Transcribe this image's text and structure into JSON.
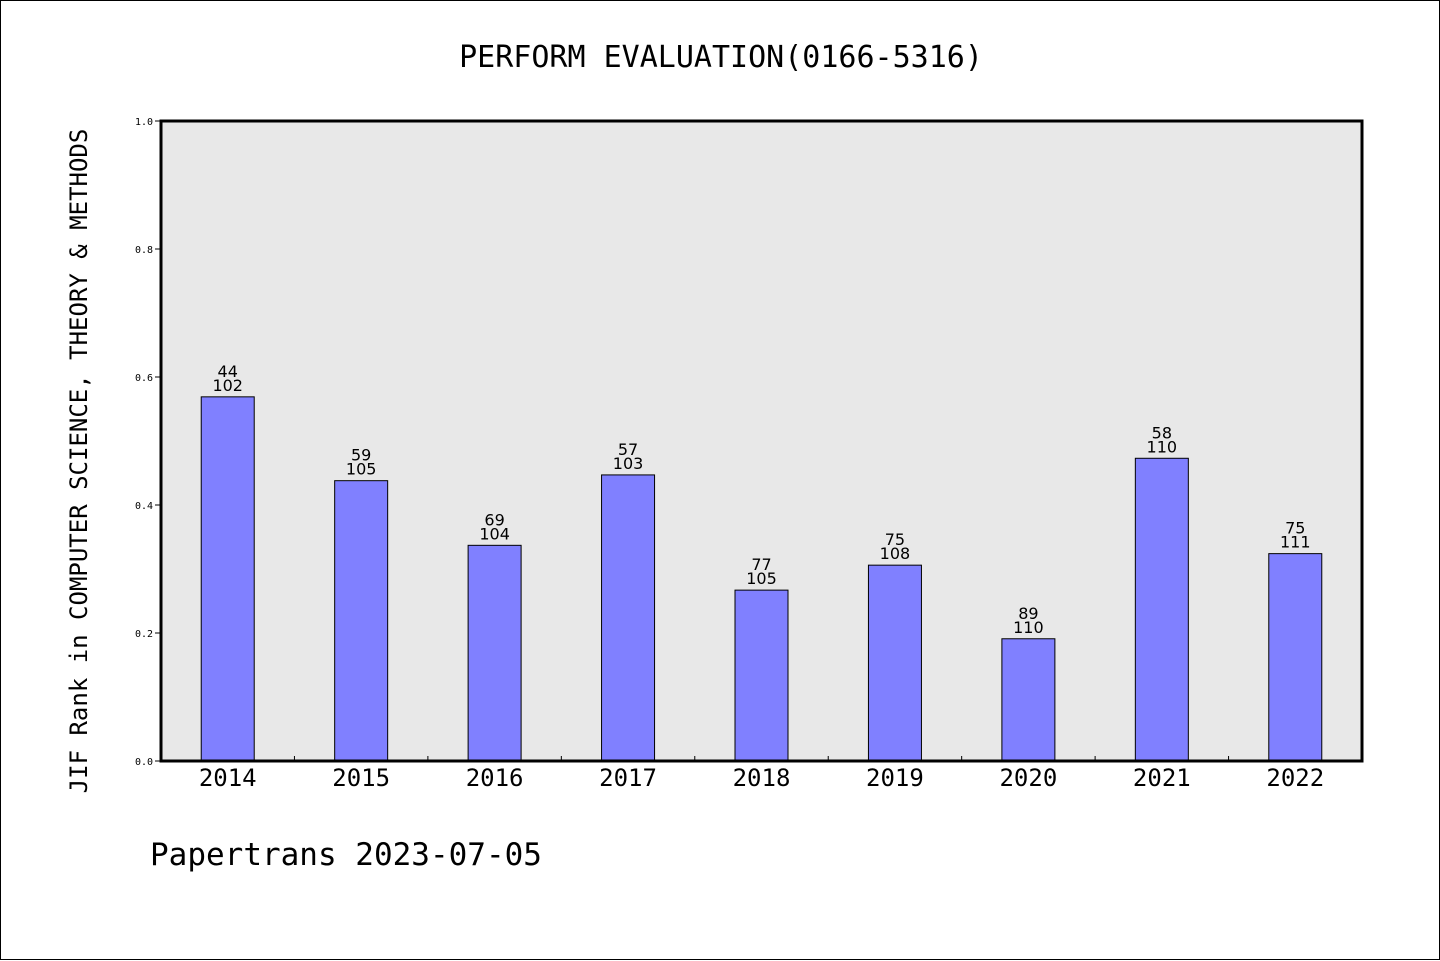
{
  "chart_data": {
    "type": "bar",
    "title": "PERFORM EVALUATION(0166-5316)",
    "xlabel": "",
    "ylabel": "JIF Rank in COMPUTER SCIENCE, THEORY & METHODS",
    "ylim": [
      0,
      1.0
    ],
    "yticks": [
      "0.0",
      "0.2",
      "0.4",
      "0.6",
      "0.8",
      "1.0"
    ],
    "categories": [
      "2014",
      "2015",
      "2016",
      "2017",
      "2018",
      "2019",
      "2020",
      "2021",
      "2022"
    ],
    "values": [
      0.569,
      0.438,
      0.337,
      0.447,
      0.267,
      0.306,
      0.191,
      0.473,
      0.324
    ],
    "rank": [
      "44",
      "59",
      "69",
      "57",
      "77",
      "75",
      "89",
      "58",
      "75"
    ],
    "total": [
      "102",
      "105",
      "104",
      "103",
      "105",
      "108",
      "110",
      "110",
      "111"
    ],
    "grid": false,
    "legend": "none",
    "colors": {
      "bar_fill": "#8080ff",
      "bar_stroke": "#000000",
      "plot_background": "#e8e8e8",
      "axis": "#000000"
    }
  },
  "footer": {
    "text": "Papertrans 2023-07-05"
  }
}
